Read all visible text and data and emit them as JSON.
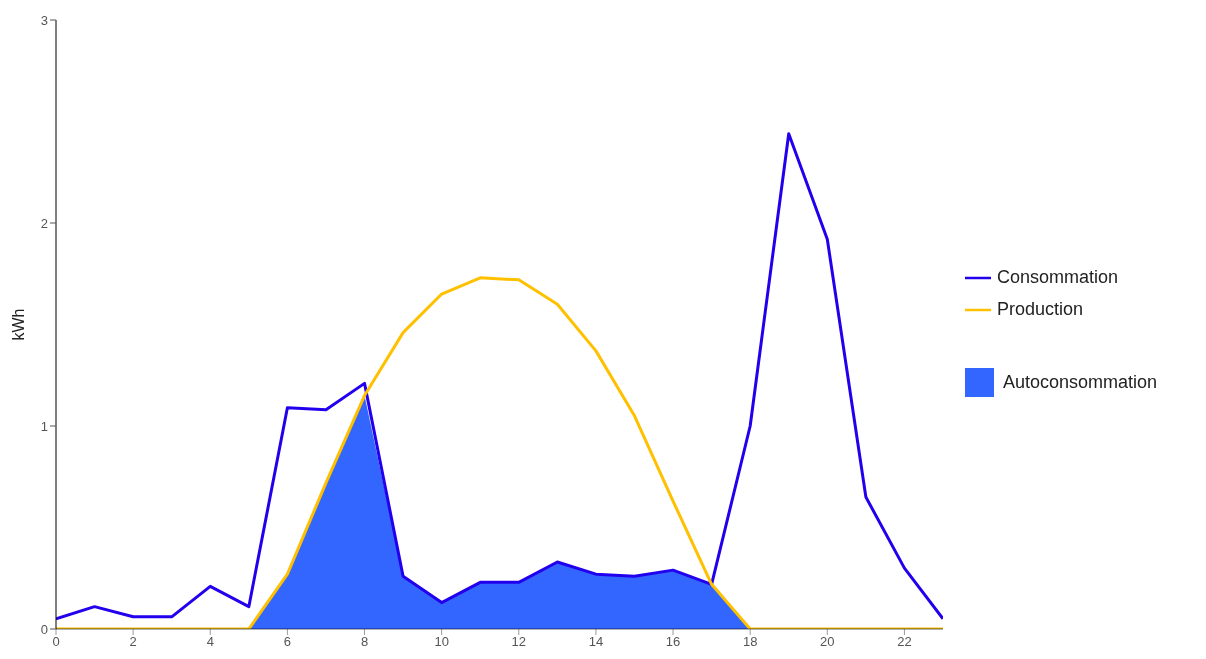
{
  "chart_data": {
    "type": "line",
    "ylabel": "kWh",
    "x": [
      0,
      1,
      2,
      3,
      4,
      5,
      6,
      7,
      8,
      9,
      10,
      11,
      12,
      13,
      14,
      15,
      16,
      17,
      18,
      19,
      20,
      21,
      22,
      23
    ],
    "series": [
      {
        "name": "Autoconsommation",
        "type": "area",
        "color": "#3366ff",
        "values": [
          0,
          0,
          0,
          0,
          0,
          0,
          0.27,
          0.72,
          1.15,
          0.26,
          0.13,
          0.23,
          0.23,
          0.33,
          0.27,
          0.26,
          0.29,
          0.22,
          0,
          0,
          0,
          0,
          0,
          0
        ]
      },
      {
        "name": "Consommation",
        "color": "#2200ee",
        "values": [
          0.05,
          0.11,
          0.06,
          0.06,
          0.21,
          0.11,
          1.09,
          1.08,
          1.21,
          0.26,
          0.13,
          0.23,
          0.23,
          0.33,
          0.27,
          0.26,
          0.29,
          0.22,
          1.0,
          2.44,
          1.92,
          0.65,
          0.3,
          0.05
        ]
      },
      {
        "name": "Production",
        "color": "#ffc000",
        "values": [
          0,
          0,
          0,
          0,
          0,
          0,
          0.27,
          0.72,
          1.15,
          1.46,
          1.65,
          1.73,
          1.72,
          1.6,
          1.37,
          1.05,
          0.63,
          0.22,
          0,
          0,
          0,
          0,
          0,
          0
        ]
      }
    ],
    "xlim": [
      0,
      23
    ],
    "xticks": [
      0,
      2,
      4,
      6,
      8,
      10,
      12,
      14,
      16,
      18,
      20,
      22
    ],
    "ylim": [
      0,
      3
    ],
    "yticks": [
      0,
      1,
      2,
      3
    ],
    "grid": false,
    "legend": "right",
    "marker": "none",
    "line_style": "solid"
  }
}
